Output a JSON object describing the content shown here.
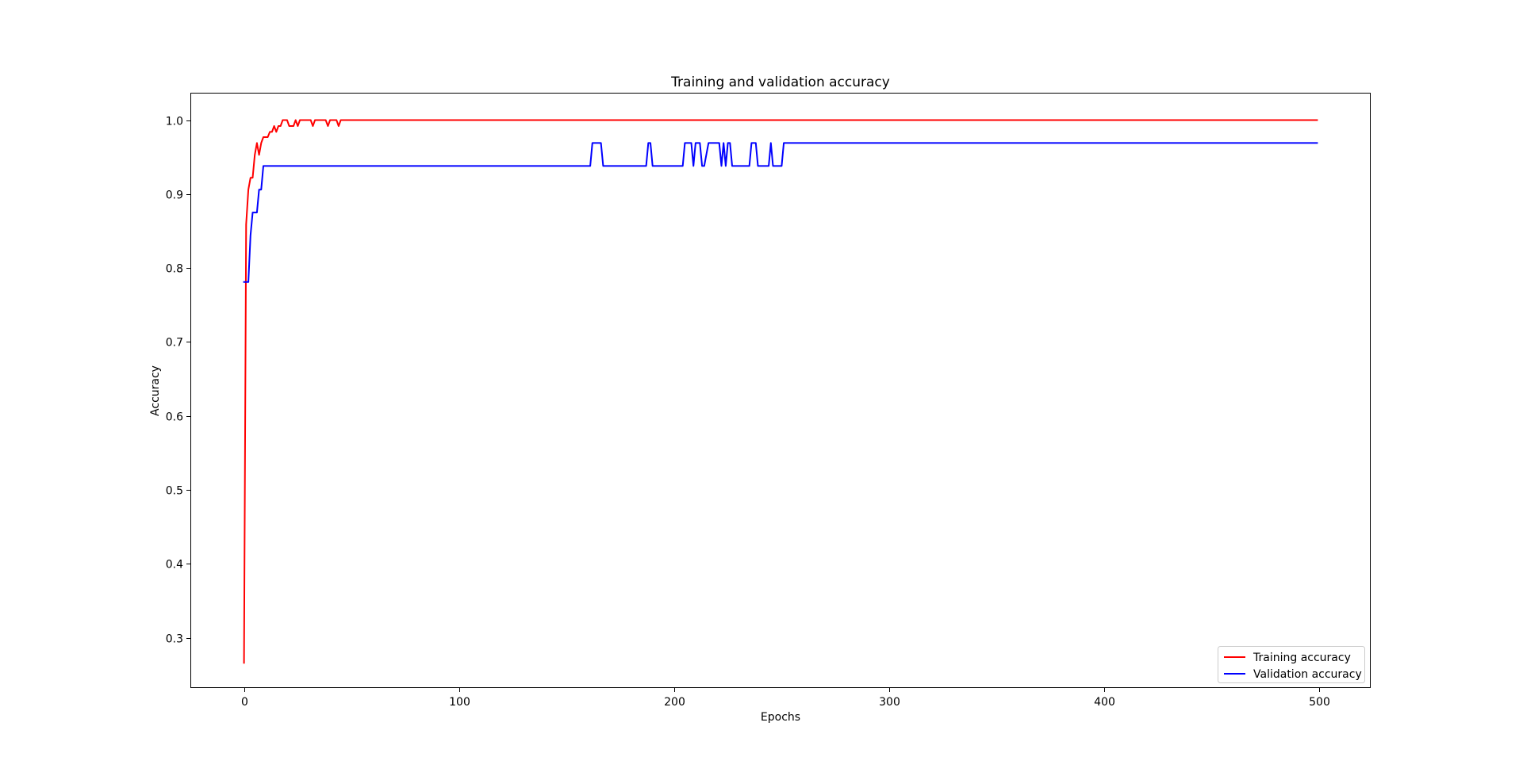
{
  "chart_data": {
    "type": "line",
    "title": "Training and validation accuracy",
    "xlabel": "Epochs",
    "ylabel": "Accuracy",
    "xlim": [
      -24.95,
      523.95
    ],
    "ylim": [
      0.232,
      1.037
    ],
    "xticks": [
      0,
      100,
      200,
      300,
      400,
      500
    ],
    "yticks": [
      0.3,
      0.4,
      0.5,
      0.6,
      0.7,
      0.8,
      0.9,
      1.0
    ],
    "xtick_labels": [
      "0",
      "100",
      "200",
      "300",
      "400",
      "500"
    ],
    "ytick_labels": [
      "0.3",
      "0.4",
      "0.5",
      "0.6",
      "0.7",
      "0.8",
      "0.9",
      "1.0"
    ],
    "grid": false,
    "legend_position": "lower-right",
    "series": [
      {
        "name": "Training accuracy",
        "color": "#ff0000",
        "x": [
          0,
          1,
          2,
          3,
          4,
          5,
          6,
          7,
          8,
          9,
          10,
          11,
          12,
          13,
          14,
          15,
          16,
          17,
          18,
          19,
          20,
          21,
          22,
          23,
          24,
          25,
          26,
          27,
          28,
          29,
          30,
          31,
          32,
          33,
          34,
          35,
          36,
          37,
          38,
          39,
          40,
          41,
          42,
          43,
          44,
          45,
          46,
          499
        ],
        "y": [
          0.266,
          0.859,
          0.906,
          0.922,
          0.922,
          0.953,
          0.969,
          0.953,
          0.969,
          0.977,
          0.977,
          0.977,
          0.984,
          0.984,
          0.992,
          0.984,
          0.992,
          0.992,
          1.0,
          1.0,
          1.0,
          0.992,
          0.992,
          0.992,
          1.0,
          0.992,
          1.0,
          1.0,
          1.0,
          1.0,
          1.0,
          1.0,
          0.992,
          1.0,
          1.0,
          1.0,
          1.0,
          1.0,
          1.0,
          0.992,
          1.0,
          1.0,
          1.0,
          1.0,
          0.992,
          1.0,
          1.0,
          1.0
        ]
      },
      {
        "name": "Validation accuracy",
        "color": "#0000ff",
        "x": [
          0,
          2,
          3,
          4,
          6,
          7,
          8,
          9,
          10,
          161,
          162,
          166,
          167,
          187,
          188,
          189,
          190,
          204,
          205,
          208,
          209,
          210,
          212,
          213,
          214,
          216,
          221,
          222,
          223,
          224,
          225,
          226,
          227,
          235,
          236,
          238,
          239,
          244,
          245,
          246,
          250,
          251,
          499
        ],
        "y": [
          0.781,
          0.781,
          0.844,
          0.875,
          0.875,
          0.906,
          0.906,
          0.938,
          0.938,
          0.938,
          0.969,
          0.969,
          0.938,
          0.938,
          0.969,
          0.969,
          0.938,
          0.938,
          0.969,
          0.969,
          0.938,
          0.969,
          0.969,
          0.938,
          0.938,
          0.969,
          0.969,
          0.938,
          0.969,
          0.938,
          0.969,
          0.969,
          0.938,
          0.938,
          0.969,
          0.969,
          0.938,
          0.938,
          0.969,
          0.938,
          0.938,
          0.969,
          0.969
        ]
      }
    ]
  }
}
